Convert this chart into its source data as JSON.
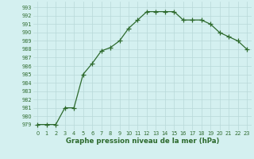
{
  "x": [
    0,
    1,
    2,
    3,
    4,
    5,
    6,
    7,
    8,
    9,
    10,
    11,
    12,
    13,
    14,
    15,
    16,
    17,
    18,
    19,
    20,
    21,
    22,
    23
  ],
  "y": [
    979,
    979,
    979,
    981,
    981,
    985,
    986.3,
    987.8,
    988.2,
    989,
    990.5,
    991.5,
    992.5,
    992.5,
    992.5,
    992.5,
    991.5,
    991.5,
    991.5,
    991,
    990,
    989.5,
    989,
    988
  ],
  "ylim_min": 978.3,
  "ylim_max": 993.7,
  "yticks": [
    979,
    980,
    981,
    982,
    983,
    984,
    985,
    986,
    987,
    988,
    989,
    990,
    991,
    992,
    993
  ],
  "xticks": [
    0,
    1,
    2,
    3,
    4,
    5,
    6,
    7,
    8,
    9,
    10,
    11,
    12,
    13,
    14,
    15,
    16,
    17,
    18,
    19,
    20,
    21,
    22,
    23
  ],
  "xlabel": "Graphe pression niveau de la mer (hPa)",
  "line_color": "#2d6a2d",
  "bg_color": "#d4f0f0",
  "grid_color": "#b8d8d8",
  "tick_label_color": "#2d6a2d",
  "xlabel_color": "#2d6a2d",
  "linewidth": 0.9,
  "markersize": 4.0,
  "markeredgewidth": 0.9,
  "tick_fontsize": 4.8,
  "xlabel_fontsize": 6.2
}
